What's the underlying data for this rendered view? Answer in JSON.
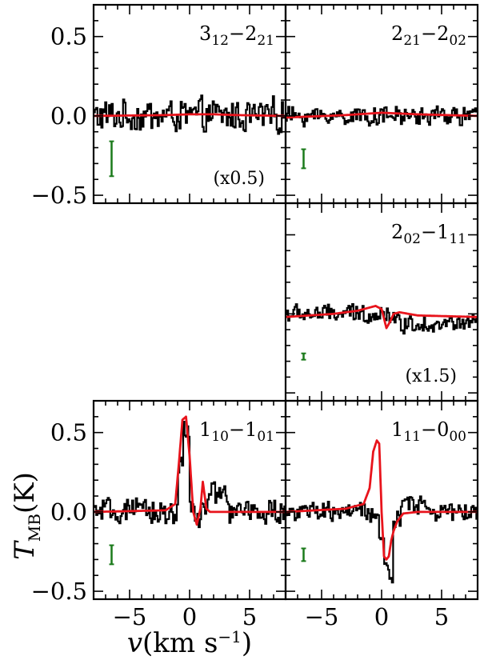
{
  "chart_data": {
    "type": "line",
    "xlabel_main": "v",
    "xlabel_units": "(km s",
    "xlabel_exp": "−1",
    "xlabel_close": ")",
    "ylabel_main": "T",
    "ylabel_sub": "MB",
    "ylabel_units": "(K)",
    "xlim": [
      -8,
      8
    ],
    "ylim": [
      -0.55,
      0.7
    ],
    "xticks": [
      -5,
      0,
      5
    ],
    "xtick_labels": [
      "−5",
      "0",
      "5"
    ],
    "yticks": [
      -0.5,
      0.0,
      0.5
    ],
    "ytick_labels": [
      "−0.5",
      "0.0",
      "0.5"
    ],
    "colors": {
      "observed": "#000000",
      "model": "#e8141c",
      "errorbar": "#1b7a1b"
    },
    "panels": [
      {
        "label": {
          "j1": "3",
          "s1": "12",
          "j2": "2",
          "s2": "21"
        },
        "scale_note": "(x0.5)",
        "errorbar": {
          "x": -6.5,
          "half_height": 0.11
        },
        "model": {
          "x": [
            -8,
            -2,
            0,
            2,
            4,
            8
          ],
          "y": [
            0.0,
            0.005,
            0.01,
            0.01,
            0.005,
            0.0
          ]
        },
        "observed": {
          "noise_amp": 0.09,
          "features": []
        }
      },
      {
        "label": {
          "j1": "2",
          "s1": "21",
          "j2": "2",
          "s2": "02"
        },
        "scale_note": "",
        "errorbar": {
          "x": -6.5,
          "half_height": 0.06
        },
        "model": {
          "x": [
            -8,
            -3,
            0,
            3,
            8
          ],
          "y": [
            -0.01,
            0.005,
            0.02,
            0.01,
            0.0
          ]
        },
        "observed": {
          "noise_amp": 0.05,
          "features": []
        }
      },
      {
        "label": {
          "j1": "2",
          "s1": "02",
          "j2": "1",
          "s2": "11"
        },
        "scale_note": "(x1.5)",
        "errorbar": {
          "x": -6.5,
          "half_height": 0.02
        },
        "model": {
          "x": [
            -8,
            -4,
            -2,
            -0.5,
            0.0,
            0.4,
            0.7,
            1.0,
            1.5,
            3.0,
            8
          ],
          "y": [
            -0.02,
            0.0,
            0.02,
            0.05,
            0.03,
            -0.09,
            -0.05,
            0.0,
            0.01,
            -0.01,
            -0.02
          ]
        },
        "observed": {
          "noise_amp": 0.05,
          "features": [
            {
              "x0": 1.0,
              "x1": 8.0,
              "y": -0.06
            },
            {
              "x0": 4.5,
              "x1": 5.5,
              "y": -0.07
            }
          ]
        }
      },
      {
        "label": {
          "j1": "1",
          "s1": "10",
          "j2": "1",
          "s2": "01"
        },
        "scale_note": "",
        "errorbar": {
          "x": -6.5,
          "half_height": 0.06
        },
        "model": {
          "x": [
            -8,
            -2,
            -1.2,
            -0.9,
            -0.6,
            -0.3,
            0.0,
            0.3,
            0.6,
            0.9,
            1.1,
            1.4,
            1.7,
            2.5,
            8
          ],
          "y": [
            0.0,
            0.01,
            0.05,
            0.3,
            0.58,
            0.6,
            0.35,
            0.0,
            -0.08,
            0.02,
            0.19,
            0.02,
            0.0,
            0.0,
            0.0
          ]
        },
        "observed": {
          "noise_amp": 0.07,
          "features": [
            {
              "x0": -1.0,
              "x1": -0.6,
              "y": 0.28
            },
            {
              "x0": -0.6,
              "x1": -0.1,
              "y": 0.5
            },
            {
              "x0": -0.1,
              "x1": 0.4,
              "y": 0.05
            },
            {
              "x0": 0.4,
              "x1": 0.9,
              "y": -0.05
            },
            {
              "x0": 1.5,
              "x1": 3.0,
              "y": 0.12
            }
          ]
        }
      },
      {
        "label": {
          "j1": "1",
          "s1": "11",
          "j2": "0",
          "s2": "00"
        },
        "scale_note": "",
        "errorbar": {
          "x": -6.5,
          "half_height": 0.04
        },
        "model": {
          "x": [
            -8,
            -3,
            -1.5,
            -1.0,
            -0.7,
            -0.4,
            -0.2,
            0.0,
            0.2,
            0.4,
            0.6,
            0.8,
            1.0,
            1.3,
            1.8,
            3.0,
            8
          ],
          "y": [
            0.0,
            0.02,
            0.05,
            0.15,
            0.38,
            0.45,
            0.43,
            0.0,
            -0.28,
            -0.3,
            -0.28,
            -0.18,
            -0.12,
            -0.06,
            -0.01,
            0.0,
            0.0
          ]
        },
        "observed": {
          "noise_amp": 0.05,
          "features": [
            {
              "x0": -1.2,
              "x1": -0.6,
              "y": -0.02
            },
            {
              "x0": -0.3,
              "x1": 0.2,
              "y": -0.15
            },
            {
              "x0": 0.2,
              "x1": 0.6,
              "y": -0.37
            },
            {
              "x0": 0.6,
              "x1": 0.9,
              "y": -0.43
            },
            {
              "x0": 0.9,
              "x1": 1.6,
              "y": -0.05
            },
            {
              "x0": 1.6,
              "x1": 4.0,
              "y": 0.05
            }
          ]
        }
      }
    ]
  }
}
